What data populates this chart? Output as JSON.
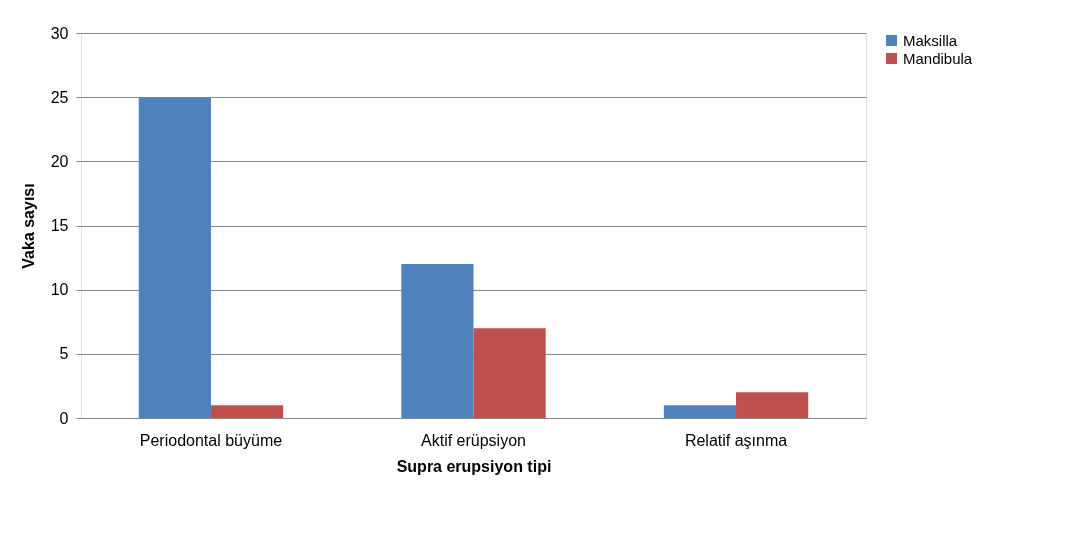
{
  "chart_data": {
    "type": "bar",
    "xlabel": "Supra erupsiyon tipi",
    "ylabel": "Vaka sayısı",
    "categories": [
      "Periodontal büyüme",
      "Aktif erüpsiyon",
      "Relatif aşınma"
    ],
    "series": [
      {
        "name": "Maksilla",
        "color": "#4f81bd",
        "values": [
          25,
          12,
          1
        ]
      },
      {
        "name": "Mandibula",
        "color": "#c0504d",
        "values": [
          1,
          7,
          2
        ]
      }
    ],
    "ylim": [
      0,
      30
    ],
    "yticks": [
      0,
      5,
      10,
      15,
      20,
      25,
      30
    ],
    "grid": "y",
    "legend": "right"
  }
}
